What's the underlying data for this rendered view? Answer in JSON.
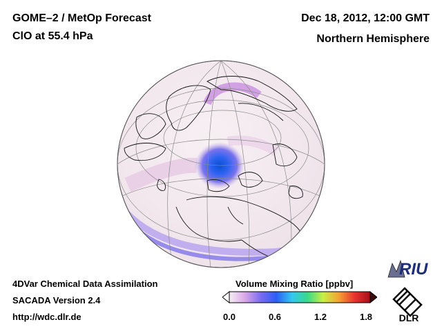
{
  "header": {
    "title_line1": "GOME–2 / MetOp Forecast",
    "title_line2": "ClO at 55.4 hPa",
    "date": "Dec 18, 2012, 12:00 GMT",
    "region": "Northern Hemisphere"
  },
  "footer": {
    "line1": "4DVar Chemical Data Assimilation",
    "line2": "SACADA Version 2.4",
    "line3": "http://wdc.dlr.de"
  },
  "colorbar": {
    "title": "Volume Mixing Ratio [ppbv]",
    "ticks": [
      "0.0",
      "0.6",
      "1.2",
      "1.8"
    ],
    "range": [
      0.0,
      1.8
    ],
    "colors": [
      "#f6eef4",
      "#d9a8e8",
      "#7c6cf0",
      "#2c5ef5",
      "#33c7f0",
      "#3ad98a",
      "#c8f044",
      "#f5a233",
      "#e8342e",
      "#a80c1c"
    ]
  },
  "logos": {
    "riu": "RIU",
    "dlr": "DLR"
  }
}
